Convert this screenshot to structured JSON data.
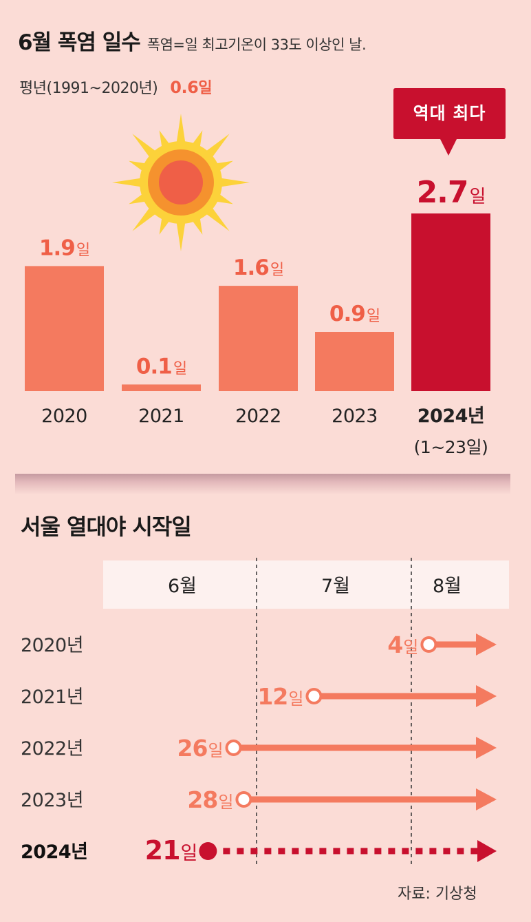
{
  "header": {
    "title": "6월 폭염 일수",
    "definition": "폭염=일 최고기온이 33도 이상인 날."
  },
  "normal": {
    "label": "평년(1991~2020년)",
    "value": "0.6",
    "unit": "일"
  },
  "record_badge": "역대 최다",
  "colors": {
    "background": "#fbdcd6",
    "bar": "#f47a5f",
    "highlight": "#c8102e",
    "label": "#ef5f47",
    "month_band": "#fdf1ef"
  },
  "icon": "sun-icon",
  "chart_data": [
    {
      "type": "bar",
      "title": "6월 폭염 일수",
      "categories": [
        "2020",
        "2021",
        "2022",
        "2023",
        "2024년"
      ],
      "category_sublabels": [
        "",
        "",
        "",
        "",
        "(1~23일)"
      ],
      "values": [
        1.9,
        0.1,
        1.6,
        0.9,
        2.7
      ],
      "value_labels": [
        "1.9",
        "0.1",
        "1.6",
        "0.9",
        "2.7"
      ],
      "unit": "일",
      "highlight_index": 4,
      "ylim": [
        0,
        2.7
      ]
    },
    {
      "type": "timeline",
      "title": "서울 열대야 시작일",
      "months": [
        "6월",
        "7월",
        "8월"
      ],
      "rows": [
        {
          "year": "2020년",
          "month": 8,
          "day": 4,
          "label": "4",
          "unit": "일"
        },
        {
          "year": "2021년",
          "month": 7,
          "day": 12,
          "label": "12",
          "unit": "일"
        },
        {
          "year": "2022년",
          "month": 6,
          "day": 26,
          "label": "26",
          "unit": "일"
        },
        {
          "year": "2023년",
          "month": 6,
          "day": 28,
          "label": "28",
          "unit": "일"
        },
        {
          "year": "2024년",
          "month": 6,
          "day": 21,
          "label": "21",
          "unit": "일",
          "highlight": true
        }
      ]
    }
  ],
  "source": "자료: 기상청"
}
